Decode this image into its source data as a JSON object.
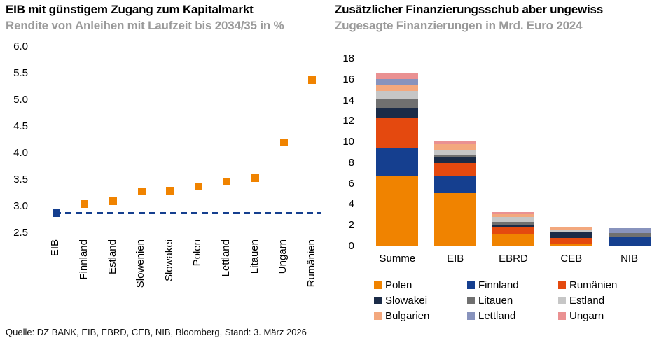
{
  "source_line": "Quelle: DZ BANK, EIB, EBRD, CEB, NIB, Bloomberg, Stand: 3. März 2026",
  "chart_data": [
    {
      "type": "scatter",
      "title": "EIB mit günstigem Zugang zum Kapitalmarkt",
      "subtitle": "Rendite von Anleihen mit Laufzeit bis 2034/35 in %",
      "categories": [
        "EIB",
        "Finnland",
        "Estland",
        "Slowenien",
        "Slowakei",
        "Polen",
        "Lettland",
        "Litauen",
        "Ungarn",
        "Rumänien"
      ],
      "values": [
        2.88,
        3.05,
        3.1,
        3.28,
        3.3,
        3.38,
        3.47,
        3.53,
        4.2,
        5.37
      ],
      "ylim": [
        2.5,
        6.0
      ],
      "yticks": [
        6.0,
        5.5,
        5.0,
        4.5,
        4.0,
        3.5,
        3.0,
        2.5
      ],
      "ytick_labels": [
        "6.0",
        "5.5",
        "5.0",
        "4.5",
        "4.0",
        "3.5",
        "3.0",
        "2.5"
      ],
      "grid": false,
      "marker": "square",
      "highlight_category": "EIB",
      "colors": {
        "highlight": "#153F8F",
        "default": "#F08300"
      },
      "reference_line": {
        "value": 2.88,
        "style": "dashed",
        "color": "#153F8F"
      }
    },
    {
      "type": "bar",
      "stacked": true,
      "title": "Zusätzlicher Finanzierungsschub aber ungewiss",
      "subtitle": "Zugesagte Finanzierungen in Mrd. Euro 2024",
      "categories": [
        "Summe",
        "EIB",
        "EBRD",
        "CEB",
        "NIB"
      ],
      "series": [
        {
          "name": "Polen",
          "color": "#F08300",
          "values": [
            6.7,
            5.1,
            1.2,
            0.2,
            0
          ]
        },
        {
          "name": "Finnland",
          "color": "#153F8F",
          "values": [
            2.8,
            1.6,
            0,
            0,
            0.95
          ]
        },
        {
          "name": "Rumänien",
          "color": "#E4490F",
          "values": [
            2.8,
            1.3,
            0.65,
            0.6,
            0
          ]
        },
        {
          "name": "Slowakei",
          "color": "#1B2B47",
          "values": [
            1.0,
            0.5,
            0.2,
            0.6,
            0
          ]
        },
        {
          "name": "Litauen",
          "color": "#707070",
          "values": [
            0.85,
            0.3,
            0.3,
            0,
            0.35
          ]
        },
        {
          "name": "Estland",
          "color": "#C6C6C6",
          "values": [
            0.75,
            0.45,
            0.45,
            0.2,
            0
          ]
        },
        {
          "name": "Bulgarien",
          "color": "#F3A87E",
          "values": [
            0.6,
            0.55,
            0.3,
            0.25,
            0
          ]
        },
        {
          "name": "Lettland",
          "color": "#8893BD",
          "values": [
            0.55,
            0,
            0,
            0,
            0.45
          ]
        },
        {
          "name": "Ungarn",
          "color": "#EA9192",
          "values": [
            0.55,
            0.25,
            0.2,
            0,
            0
          ]
        }
      ],
      "ylim": [
        0,
        18
      ],
      "yticks": [
        18,
        16,
        14,
        12,
        10,
        8,
        6,
        4,
        2,
        0
      ],
      "ytick_labels": [
        "18",
        "16",
        "14",
        "12",
        "10",
        "8",
        "6",
        "4",
        "2",
        "0"
      ],
      "grid": false,
      "legend_position": "bottom",
      "legend_columns": 3,
      "legend_order": [
        "Polen",
        "Finnland",
        "Rumänien",
        "Slowakei",
        "Litauen",
        "Estland",
        "Bulgarien",
        "Lettland",
        "Ungarn"
      ]
    }
  ]
}
